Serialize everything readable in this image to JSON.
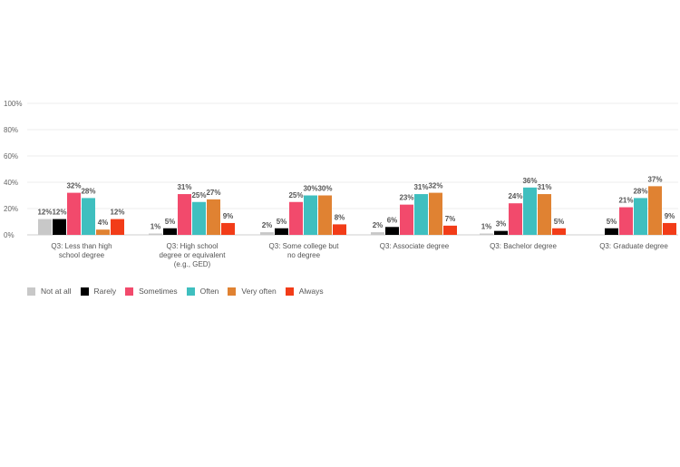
{
  "chart_data": {
    "type": "bar",
    "title": "",
    "xlabel": "",
    "ylabel": "",
    "ylim": [
      0,
      100
    ],
    "yticks": [
      "0%",
      "20%",
      "40%",
      "60%",
      "80%",
      "100%"
    ],
    "grid": true,
    "legend_placement": "bottom-left",
    "categories": [
      [
        "Q3: Less than high",
        "school degree"
      ],
      [
        "Q3: High school",
        "degree or equivalent",
        "(e.g., GED)"
      ],
      [
        "Q3: Some college but",
        "no degree"
      ],
      [
        "Q3: Associate degree"
      ],
      [
        "Q3: Bachelor degree"
      ],
      [
        "Q3: Graduate degree"
      ]
    ],
    "series": [
      {
        "name": "Not at all",
        "color": "#c8c8c8",
        "values": [
          12,
          1,
          2,
          2,
          1,
          0
        ],
        "labels": [
          "12%",
          "1%",
          "2%",
          "2%",
          "1%",
          ""
        ]
      },
      {
        "name": "Rarely",
        "color": "#000000",
        "values": [
          12,
          5,
          5,
          6,
          3,
          5
        ],
        "labels": [
          "12%",
          "5%",
          "5%",
          "6%",
          "3%",
          "5%"
        ]
      },
      {
        "name": "Sometimes",
        "color": "#f24a6c",
        "values": [
          32,
          31,
          25,
          23,
          24,
          21
        ],
        "labels": [
          "32%",
          "31%",
          "25%",
          "23%",
          "24%",
          "21%"
        ]
      },
      {
        "name": "Often",
        "color": "#3fbfbf",
        "values": [
          28,
          25,
          30,
          31,
          36,
          28
        ],
        "labels": [
          "28%",
          "25%",
          "30%",
          "31%",
          "36%",
          "28%"
        ]
      },
      {
        "name": "Very often",
        "color": "#e08232",
        "values": [
          4,
          27,
          30,
          32,
          31,
          37
        ],
        "labels": [
          "4%",
          "27%",
          "30%",
          "32%",
          "31%",
          "37%"
        ]
      },
      {
        "name": "Always",
        "color": "#f23c18",
        "values": [
          12,
          9,
          8,
          7,
          5,
          9
        ],
        "labels": [
          "12%",
          "9%",
          "8%",
          "7%",
          "5%",
          "9%"
        ]
      }
    ]
  }
}
